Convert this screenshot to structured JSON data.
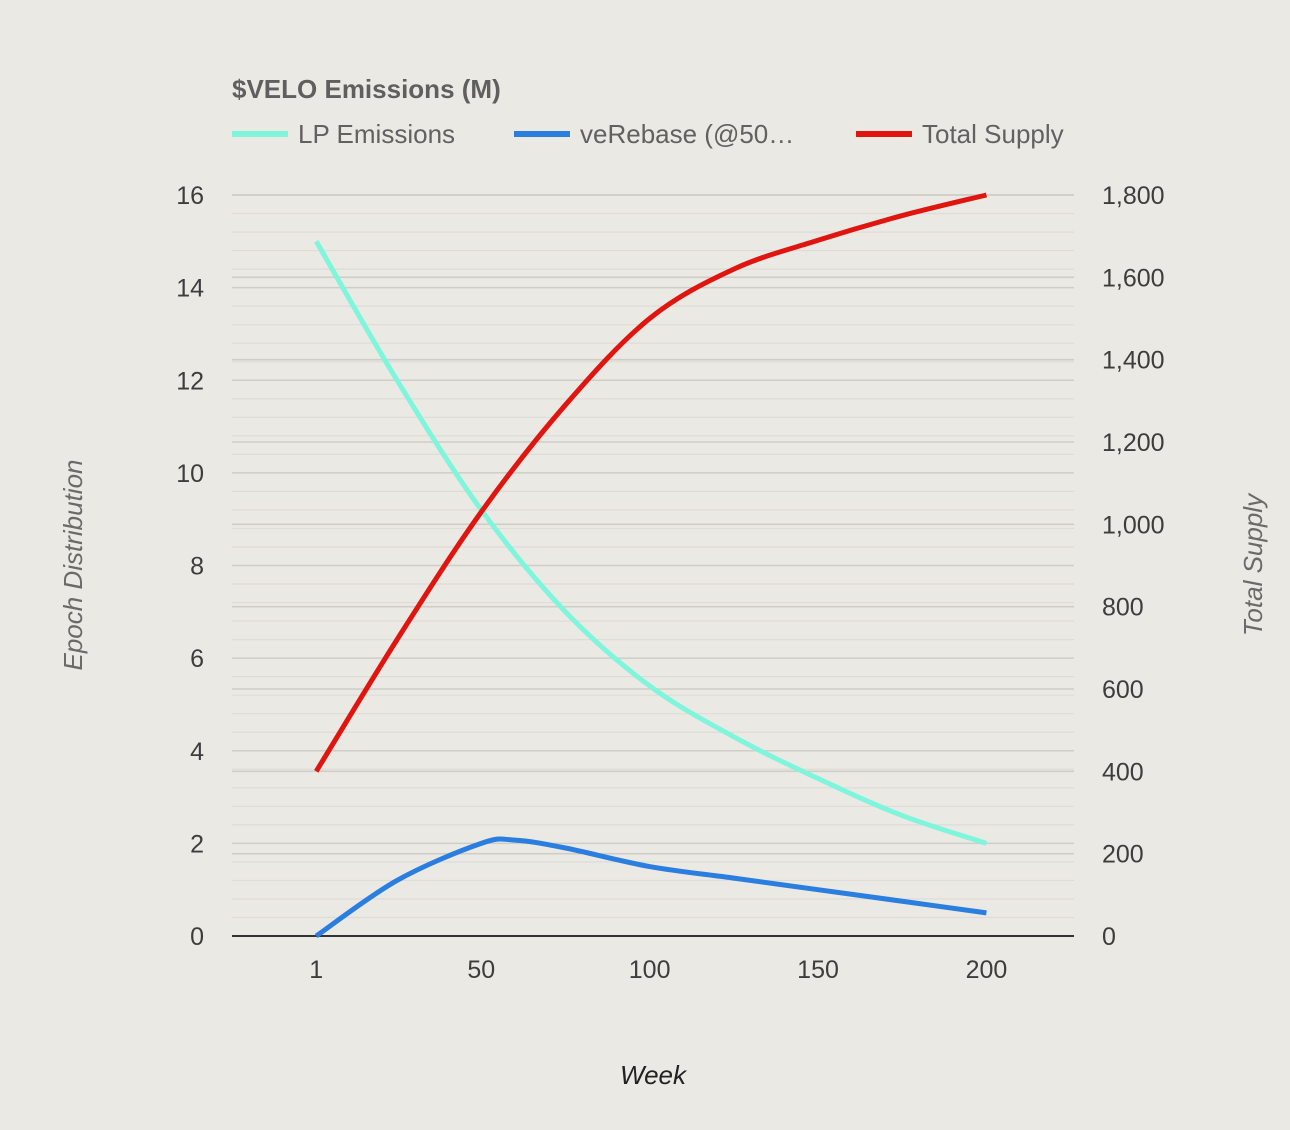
{
  "chart_data": {
    "type": "line",
    "title": "$VELO Emissions (M)",
    "xlabel": "Week",
    "ylabel_left": "Epoch Distribution",
    "ylabel_right": "Total Supply",
    "x_ticks": [
      "1",
      "50",
      "100",
      "150",
      "200"
    ],
    "x_tick_values": [
      1,
      50,
      100,
      150,
      200
    ],
    "xlim": [
      -24,
      226
    ],
    "y_left_ticks": [
      "0",
      "2",
      "4",
      "6",
      "8",
      "10",
      "12",
      "14",
      "16"
    ],
    "y_left_lim": [
      0,
      16
    ],
    "y_right_ticks": [
      "0",
      "200",
      "400",
      "600",
      "800",
      "1,000",
      "1,200",
      "1,400",
      "1,600",
      "1,800"
    ],
    "y_right_lim": [
      0,
      1800
    ],
    "legend_position": "top",
    "grid": true,
    "series": [
      {
        "name": "LP Emissions",
        "display_name": "LP Emissions",
        "axis": "left",
        "color": "#7ff5dc",
        "x": [
          1,
          25,
          50,
          75,
          100,
          125,
          150,
          175,
          200
        ],
        "values": [
          15.0,
          12.0,
          9.2,
          7.0,
          5.4,
          4.3,
          3.4,
          2.6,
          2.0
        ]
      },
      {
        "name": "veRebase (@50...",
        "display_name": "veRebase (@50…",
        "axis": "left",
        "color": "#2a7ee0",
        "x": [
          1,
          25,
          50,
          60,
          75,
          100,
          125,
          150,
          175,
          200
        ],
        "values": [
          0.0,
          1.2,
          2.0,
          2.07,
          1.9,
          1.5,
          1.25,
          1.0,
          0.75,
          0.5
        ]
      },
      {
        "name": "Total Supply",
        "display_name": "Total Supply",
        "axis": "right",
        "color": "#e0150f",
        "x": [
          1,
          25,
          50,
          75,
          100,
          125,
          150,
          175,
          200
        ],
        "values": [
          400,
          720,
          1030,
          1290,
          1500,
          1620,
          1690,
          1750,
          1800
        ]
      }
    ]
  }
}
